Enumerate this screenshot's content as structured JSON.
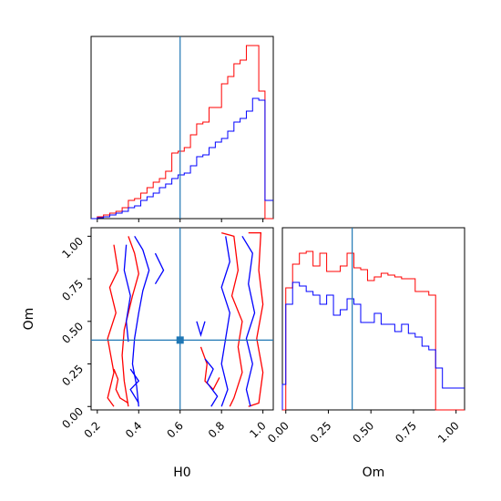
{
  "chart_data": {
    "type": "corner",
    "parameters": [
      "H0",
      "Om"
    ],
    "truths": {
      "H0": 0.6,
      "Om": 0.39
    },
    "colors": {
      "red_run": "#ff0000",
      "blue_run": "#0000ff",
      "truth": "#1f77b4"
    },
    "h0_hist": {
      "type": "step-histogram",
      "xlim": [
        0.17,
        1.05
      ],
      "edges": [
        0.17,
        0.2,
        0.23,
        0.26,
        0.29,
        0.32,
        0.35,
        0.38,
        0.41,
        0.44,
        0.47,
        0.5,
        0.53,
        0.56,
        0.59,
        0.62,
        0.65,
        0.68,
        0.71,
        0.74,
        0.77,
        0.8,
        0.83,
        0.86,
        0.89,
        0.92,
        0.95,
        0.98,
        1.01,
        1.05
      ],
      "series": [
        {
          "color": "red",
          "values": [
            0,
            1,
            2,
            3,
            4,
            6,
            10,
            11,
            14,
            17,
            20,
            22,
            26,
            36,
            37,
            39,
            46,
            52,
            53,
            61,
            61,
            74,
            78,
            85,
            87,
            95,
            95,
            70,
            0
          ]
        },
        {
          "color": "blue",
          "values": [
            0,
            0.5,
            1,
            2,
            3,
            4,
            6,
            7,
            10,
            12,
            14,
            17,
            19,
            22,
            24,
            25,
            29,
            34,
            35,
            39,
            42,
            44,
            48,
            53,
            55,
            59,
            66,
            65,
            10
          ]
        }
      ],
      "ylim": [
        0,
        100
      ],
      "xticks": [
        0.2,
        0.4,
        0.6,
        0.8,
        1.0
      ]
    },
    "om_hist": {
      "type": "step-histogram",
      "xlim": [
        -0.02,
        1.05
      ],
      "edges": [
        -0.02,
        0.0,
        0.04,
        0.08,
        0.12,
        0.16,
        0.2,
        0.24,
        0.28,
        0.32,
        0.36,
        0.4,
        0.44,
        0.48,
        0.52,
        0.56,
        0.6,
        0.64,
        0.68,
        0.72,
        0.76,
        0.8,
        0.84,
        0.88,
        0.92,
        0.96,
        1.0,
        1.05
      ],
      "series": [
        {
          "color": "red",
          "values": [
            0,
            67,
            80,
            86,
            87,
            79,
            86,
            76,
            76,
            79,
            86,
            78,
            77,
            71,
            73,
            75,
            74,
            73,
            72,
            72,
            65,
            65,
            63,
            0,
            0,
            0,
            0
          ]
        },
        {
          "color": "blue",
          "values": [
            14,
            58,
            70,
            68,
            65,
            63,
            58,
            63,
            52,
            55,
            61,
            58,
            48,
            48,
            53,
            47,
            47,
            43,
            47,
            42,
            40,
            35,
            33,
            23,
            12,
            12,
            12
          ]
        }
      ],
      "ylim": [
        0,
        100
      ],
      "xticks": [
        0.0,
        0.25,
        0.5,
        0.75,
        1.0
      ],
      "xtick_labels": [
        "0.00",
        "0.25",
        "0.50",
        "0.75",
        "1.00"
      ],
      "xlabel": "Om"
    },
    "contour_panel": {
      "type": "contour",
      "xlim": [
        0.17,
        1.05
      ],
      "ylim": [
        -0.02,
        1.05
      ],
      "xticks": [
        0.2,
        0.4,
        0.6,
        0.8,
        1.0
      ],
      "xtick_labels": [
        "0.2",
        "0.4",
        "0.6",
        "0.8",
        "1.0"
      ],
      "yticks": [
        0.0,
        0.25,
        0.5,
        0.75,
        1.0
      ],
      "ytick_labels": [
        "0.00",
        "0.25",
        "0.50",
        "0.75",
        "1.00"
      ],
      "xlabel": "H0",
      "ylabel": "Om",
      "contours": [
        {
          "color": "red",
          "points": [
            [
              0.35,
              1.0
            ],
            [
              0.38,
              0.9
            ],
            [
              0.4,
              0.78
            ],
            [
              0.37,
              0.65
            ],
            [
              0.35,
              0.55
            ],
            [
              0.33,
              0.45
            ],
            [
              0.32,
              0.3
            ],
            [
              0.33,
              0.15
            ],
            [
              0.35,
              0.0
            ]
          ]
        },
        {
          "color": "red",
          "points": [
            [
              0.28,
              0.95
            ],
            [
              0.3,
              0.8
            ],
            [
              0.26,
              0.7
            ],
            [
              0.29,
              0.55
            ],
            [
              0.25,
              0.4
            ],
            [
              0.28,
              0.2
            ],
            [
              0.25,
              0.05
            ],
            [
              0.28,
              0.0
            ]
          ]
        },
        {
          "color": "red",
          "points": [
            [
              0.8,
              1.02
            ],
            [
              0.86,
              1.0
            ],
            [
              0.88,
              0.8
            ],
            [
              0.85,
              0.65
            ],
            [
              0.9,
              0.5
            ],
            [
              0.88,
              0.35
            ],
            [
              0.9,
              0.2
            ],
            [
              0.86,
              0.05
            ],
            [
              0.84,
              0.0
            ]
          ]
        },
        {
          "color": "red",
          "points": [
            [
              0.93,
              1.02
            ],
            [
              0.99,
              1.02
            ],
            [
              0.98,
              0.8
            ],
            [
              1.0,
              0.6
            ],
            [
              0.97,
              0.4
            ],
            [
              1.0,
              0.2
            ],
            [
              0.98,
              0.02
            ],
            [
              0.93,
              0.0
            ]
          ]
        },
        {
          "color": "red",
          "points": [
            [
              0.7,
              0.35
            ],
            [
              0.73,
              0.25
            ],
            [
              0.72,
              0.15
            ],
            [
              0.76,
              0.1
            ],
            [
              0.79,
              0.17
            ]
          ]
        },
        {
          "color": "red",
          "points": [
            [
              0.28,
              0.22
            ],
            [
              0.3,
              0.16
            ],
            [
              0.29,
              0.1
            ],
            [
              0.31,
              0.05
            ],
            [
              0.35,
              0.02
            ]
          ]
        },
        {
          "color": "blue",
          "points": [
            [
              0.38,
              1.0
            ],
            [
              0.42,
              0.92
            ],
            [
              0.45,
              0.8
            ],
            [
              0.42,
              0.68
            ],
            [
              0.4,
              0.55
            ],
            [
              0.38,
              0.4
            ],
            [
              0.37,
              0.25
            ],
            [
              0.39,
              0.12
            ],
            [
              0.4,
              0.0
            ]
          ]
        },
        {
          "color": "blue",
          "points": [
            [
              0.34,
              0.95
            ],
            [
              0.33,
              0.8
            ],
            [
              0.36,
              0.65
            ],
            [
              0.34,
              0.5
            ],
            [
              0.35,
              0.38
            ]
          ]
        },
        {
          "color": "blue",
          "points": [
            [
              0.82,
              1.0
            ],
            [
              0.84,
              0.85
            ],
            [
              0.8,
              0.7
            ],
            [
              0.84,
              0.55
            ],
            [
              0.82,
              0.4
            ],
            [
              0.8,
              0.25
            ],
            [
              0.83,
              0.1
            ],
            [
              0.8,
              0.0
            ]
          ]
        },
        {
          "color": "blue",
          "points": [
            [
              0.9,
              1.0
            ],
            [
              0.95,
              0.9
            ],
            [
              0.93,
              0.72
            ],
            [
              0.96,
              0.55
            ],
            [
              0.92,
              0.4
            ],
            [
              0.95,
              0.25
            ],
            [
              0.92,
              0.1
            ],
            [
              0.94,
              0.0
            ]
          ]
        },
        {
          "color": "blue",
          "points": [
            [
              0.48,
              0.9
            ],
            [
              0.52,
              0.8
            ],
            [
              0.48,
              0.72
            ]
          ]
        },
        {
          "color": "blue",
          "points": [
            [
              0.68,
              0.5
            ],
            [
              0.7,
              0.42
            ],
            [
              0.72,
              0.5
            ]
          ]
        },
        {
          "color": "blue",
          "points": [
            [
              0.36,
              0.22
            ],
            [
              0.4,
              0.15
            ],
            [
              0.36,
              0.1
            ],
            [
              0.4,
              0.02
            ]
          ]
        },
        {
          "color": "blue",
          "points": [
            [
              0.72,
              0.28
            ],
            [
              0.76,
              0.22
            ],
            [
              0.73,
              0.14
            ],
            [
              0.78,
              0.06
            ],
            [
              0.75,
              0.0
            ]
          ]
        }
      ]
    }
  }
}
